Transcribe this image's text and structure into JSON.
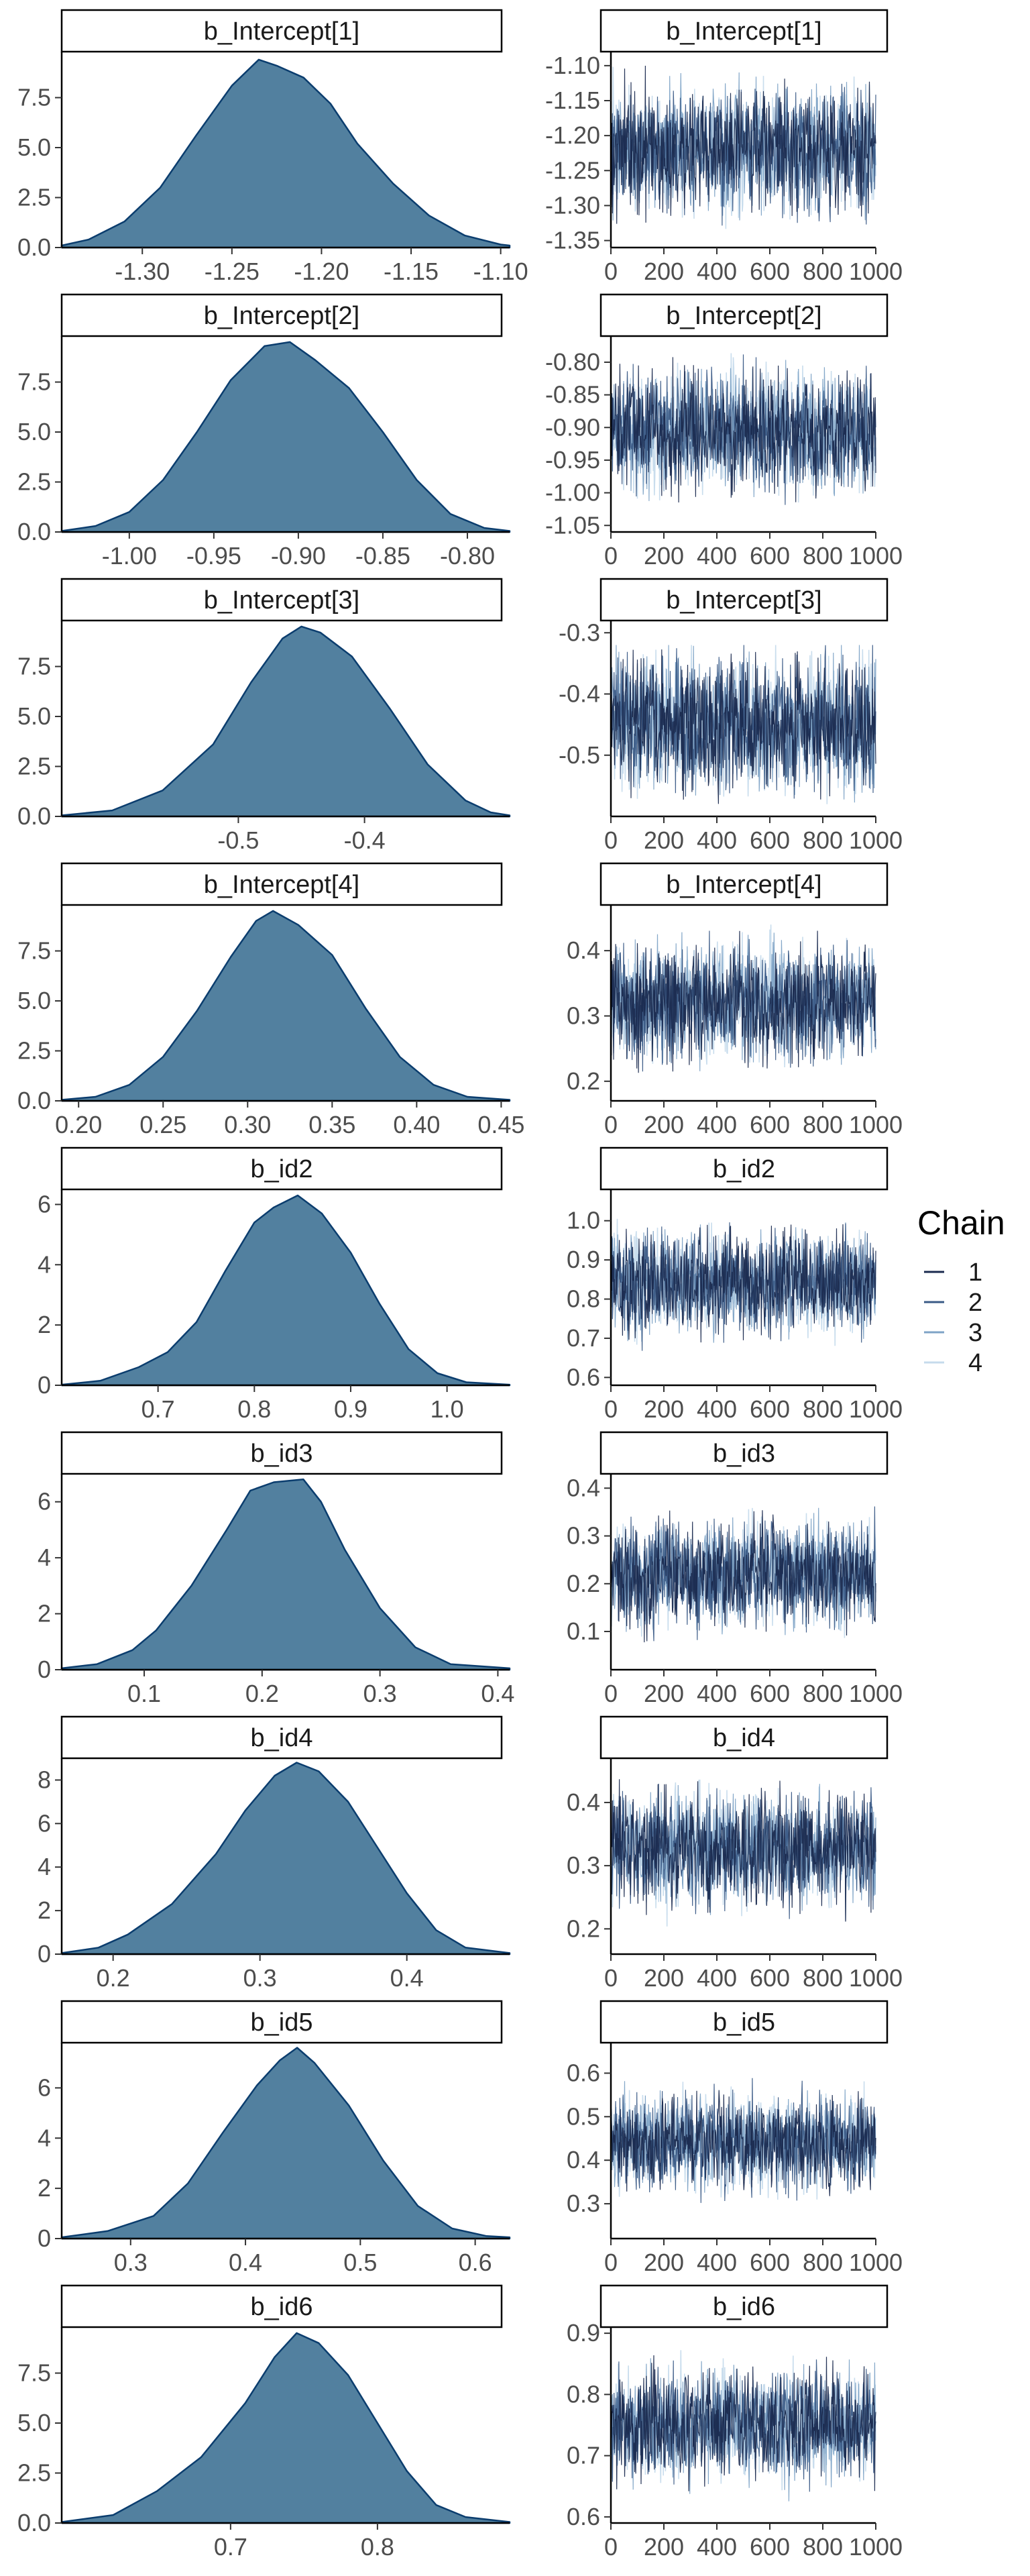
{
  "colors": {
    "density_fill": "#52809f",
    "density_line": "#0b3d6e",
    "chain_1": "#1a2a4f",
    "chain_2": "#3a5a86",
    "chain_3": "#7ea3c6",
    "chain_4": "#c6dbec"
  },
  "legend": {
    "title": "Chain",
    "entries": [
      "1",
      "2",
      "3",
      "4"
    ]
  },
  "chart_data": [
    {
      "type": "area",
      "role": "density",
      "title": "b_Intercept[1]",
      "xlim": [
        -1.345,
        -1.095
      ],
      "ylim": [
        0,
        9.8
      ],
      "x_ticks": [
        -1.3,
        -1.25,
        -1.2,
        -1.15,
        -1.1
      ],
      "x_tick_labels": [
        "-1.30",
        "-1.25",
        "-1.20",
        "-1.15",
        "-1.10"
      ],
      "y_ticks": [
        0,
        2.5,
        5,
        7.5
      ],
      "y_tick_labels": [
        "0.0",
        "2.5",
        "5.0",
        "7.5"
      ],
      "x": [
        -1.345,
        -1.33,
        -1.31,
        -1.29,
        -1.27,
        -1.25,
        -1.235,
        -1.225,
        -1.21,
        -1.195,
        -1.18,
        -1.16,
        -1.14,
        -1.12,
        -1.1,
        -1.095
      ],
      "y": [
        0.1,
        0.4,
        1.3,
        3.0,
        5.6,
        8.1,
        9.4,
        9.1,
        8.5,
        7.2,
        5.2,
        3.2,
        1.6,
        0.6,
        0.15,
        0.1
      ]
    },
    {
      "type": "line",
      "role": "trace",
      "title": "b_Intercept[1]",
      "xlim": [
        0,
        1000
      ],
      "ylim": [
        -1.36,
        -1.08
      ],
      "x_ticks": [
        0,
        200,
        400,
        600,
        800,
        1000
      ],
      "x_tick_labels": [
        "0",
        "200",
        "400",
        "600",
        "800",
        "1000"
      ],
      "y_ticks": [
        -1.35,
        -1.3,
        -1.25,
        -1.2,
        -1.15,
        -1.1
      ],
      "y_tick_labels": [
        "-1.35",
        "-1.30",
        "-1.25",
        "-1.20",
        "-1.15",
        "-1.10"
      ],
      "center": -1.22,
      "spread": 0.045,
      "min": -1.35,
      "max": -1.1,
      "iterations": 1000,
      "series": [
        {
          "name": "1"
        },
        {
          "name": "2"
        },
        {
          "name": "3"
        },
        {
          "name": "4"
        }
      ]
    },
    {
      "type": "area",
      "role": "density",
      "title": "b_Intercept[2]",
      "xlim": [
        -1.04,
        -0.775
      ],
      "ylim": [
        0,
        9.8
      ],
      "x_ticks": [
        -1.0,
        -0.95,
        -0.9,
        -0.85,
        -0.8
      ],
      "x_tick_labels": [
        "-1.00",
        "-0.95",
        "-0.90",
        "-0.85",
        "-0.80"
      ],
      "y_ticks": [
        0,
        2.5,
        5,
        7.5
      ],
      "y_tick_labels": [
        "0.0",
        "2.5",
        "5.0",
        "7.5"
      ],
      "x": [
        -1.04,
        -1.02,
        -1.0,
        -0.98,
        -0.96,
        -0.94,
        -0.92,
        -0.905,
        -0.89,
        -0.87,
        -0.85,
        -0.83,
        -0.81,
        -0.79,
        -0.775
      ],
      "y": [
        0.05,
        0.3,
        1.0,
        2.6,
        5.0,
        7.6,
        9.3,
        9.5,
        8.6,
        7.2,
        5.0,
        2.6,
        0.9,
        0.2,
        0.05
      ]
    },
    {
      "type": "line",
      "role": "trace",
      "title": "b_Intercept[2]",
      "xlim": [
        0,
        1000
      ],
      "ylim": [
        -1.06,
        -0.76
      ],
      "x_ticks": [
        0,
        200,
        400,
        600,
        800,
        1000
      ],
      "x_tick_labels": [
        "0",
        "200",
        "400",
        "600",
        "800",
        "1000"
      ],
      "y_ticks": [
        -1.05,
        -1.0,
        -0.95,
        -0.9,
        -0.85,
        -0.8
      ],
      "y_tick_labels": [
        "-1.05",
        "-1.00",
        "-0.95",
        "-0.90",
        "-0.85",
        "-0.80"
      ],
      "center": -0.905,
      "spread": 0.045,
      "min": -1.04,
      "max": -0.77,
      "iterations": 1000,
      "series": [
        {
          "name": "1"
        },
        {
          "name": "2"
        },
        {
          "name": "3"
        },
        {
          "name": "4"
        }
      ]
    },
    {
      "type": "area",
      "role": "density",
      "title": "b_Intercept[3]",
      "xlim": [
        -0.64,
        -0.285
      ],
      "ylim": [
        0,
        9.8
      ],
      "x_ticks": [
        -0.5,
        -0.4
      ],
      "x_tick_labels": [
        "-0.5",
        "-0.4"
      ],
      "y_ticks": [
        0,
        2.5,
        5,
        7.5
      ],
      "y_tick_labels": [
        "0.0",
        "2.5",
        "5.0",
        "7.5"
      ],
      "x": [
        -0.64,
        -0.6,
        -0.56,
        -0.52,
        -0.49,
        -0.465,
        -0.45,
        -0.435,
        -0.41,
        -0.38,
        -0.35,
        -0.32,
        -0.3,
        -0.285
      ],
      "y": [
        0.05,
        0.3,
        1.3,
        3.6,
        6.7,
        8.9,
        9.5,
        9.2,
        8.0,
        5.4,
        2.6,
        0.8,
        0.2,
        0.05
      ]
    },
    {
      "type": "line",
      "role": "trace",
      "title": "b_Intercept[3]",
      "xlim": [
        0,
        1000
      ],
      "ylim": [
        -0.6,
        -0.28
      ],
      "x_ticks": [
        0,
        200,
        400,
        600,
        800,
        1000
      ],
      "x_tick_labels": [
        "0",
        "200",
        "400",
        "600",
        "800",
        "1000"
      ],
      "y_ticks": [
        -0.5,
        -0.4,
        -0.3
      ],
      "y_tick_labels": [
        "-0.5",
        "-0.4",
        "-0.3"
      ],
      "center": -0.45,
      "spread": 0.055,
      "min": -0.58,
      "max": -0.32,
      "iterations": 1000,
      "series": [
        {
          "name": "1"
        },
        {
          "name": "2"
        },
        {
          "name": "3"
        },
        {
          "name": "4"
        }
      ]
    },
    {
      "type": "area",
      "role": "density",
      "title": "b_Intercept[4]",
      "xlim": [
        0.19,
        0.455
      ],
      "ylim": [
        0,
        9.8
      ],
      "x_ticks": [
        0.2,
        0.25,
        0.3,
        0.35,
        0.4,
        0.45
      ],
      "x_tick_labels": [
        "0.20",
        "0.25",
        "0.30",
        "0.35",
        "0.40",
        "0.45"
      ],
      "y_ticks": [
        0,
        2.5,
        5,
        7.5
      ],
      "y_tick_labels": [
        "0.0",
        "2.5",
        "5.0",
        "7.5"
      ],
      "x": [
        0.19,
        0.21,
        0.23,
        0.25,
        0.27,
        0.29,
        0.305,
        0.315,
        0.33,
        0.35,
        0.37,
        0.39,
        0.41,
        0.43,
        0.455
      ],
      "y": [
        0.05,
        0.2,
        0.8,
        2.2,
        4.5,
        7.2,
        9.0,
        9.5,
        8.8,
        7.3,
        4.6,
        2.2,
        0.8,
        0.2,
        0.05
      ]
    },
    {
      "type": "line",
      "role": "trace",
      "title": "b_Intercept[4]",
      "xlim": [
        0,
        1000
      ],
      "ylim": [
        0.17,
        0.47
      ],
      "x_ticks": [
        0,
        200,
        400,
        600,
        800,
        1000
      ],
      "x_tick_labels": [
        "0",
        "200",
        "400",
        "600",
        "800",
        "1000"
      ],
      "y_ticks": [
        0.2,
        0.3,
        0.4
      ],
      "y_tick_labels": [
        "0.2",
        "0.3",
        "0.4"
      ],
      "center": 0.32,
      "spread": 0.045,
      "min": 0.18,
      "max": 0.46,
      "iterations": 1000,
      "series": [
        {
          "name": "1"
        },
        {
          "name": "2"
        },
        {
          "name": "3"
        },
        {
          "name": "4"
        }
      ]
    },
    {
      "type": "area",
      "role": "density",
      "title": "b_id2",
      "xlim": [
        0.6,
        1.065
      ],
      "ylim": [
        0,
        6.5
      ],
      "x_ticks": [
        0.7,
        0.8,
        0.9,
        1.0
      ],
      "x_tick_labels": [
        "0.7",
        "0.8",
        "0.9",
        "1.0"
      ],
      "y_ticks": [
        0,
        2,
        4,
        6
      ],
      "y_tick_labels": [
        "0",
        "2",
        "4",
        "6"
      ],
      "x": [
        0.6,
        0.64,
        0.68,
        0.71,
        0.74,
        0.77,
        0.8,
        0.82,
        0.845,
        0.87,
        0.9,
        0.93,
        0.96,
        0.99,
        1.02,
        1.065
      ],
      "y": [
        0.02,
        0.15,
        0.6,
        1.1,
        2.1,
        3.8,
        5.4,
        5.9,
        6.3,
        5.7,
        4.4,
        2.7,
        1.2,
        0.4,
        0.1,
        0.02
      ]
    },
    {
      "type": "line",
      "role": "trace",
      "title": "b_id2",
      "xlim": [
        0,
        1000
      ],
      "ylim": [
        0.58,
        1.08
      ],
      "x_ticks": [
        0,
        200,
        400,
        600,
        800,
        1000
      ],
      "x_tick_labels": [
        "0",
        "200",
        "400",
        "600",
        "800",
        "1000"
      ],
      "y_ticks": [
        0.6,
        0.7,
        0.8,
        0.9,
        1.0
      ],
      "y_tick_labels": [
        "0.6",
        "0.7",
        "0.8",
        "0.9",
        "1.0"
      ],
      "center": 0.84,
      "spread": 0.065,
      "min": 0.6,
      "max": 1.06,
      "iterations": 1000,
      "series": [
        {
          "name": "1"
        },
        {
          "name": "2"
        },
        {
          "name": "3"
        },
        {
          "name": "4"
        }
      ]
    },
    {
      "type": "area",
      "role": "density",
      "title": "b_id3",
      "xlim": [
        0.03,
        0.41
      ],
      "ylim": [
        0,
        7.0
      ],
      "x_ticks": [
        0.1,
        0.2,
        0.3,
        0.4
      ],
      "x_tick_labels": [
        "0.1",
        "0.2",
        "0.3",
        "0.4"
      ],
      "y_ticks": [
        0,
        2,
        4,
        6
      ],
      "y_tick_labels": [
        "0",
        "2",
        "4",
        "6"
      ],
      "x": [
        0.03,
        0.06,
        0.09,
        0.11,
        0.14,
        0.17,
        0.19,
        0.21,
        0.235,
        0.25,
        0.27,
        0.3,
        0.33,
        0.36,
        0.41
      ],
      "y": [
        0.05,
        0.2,
        0.7,
        1.4,
        3.0,
        5.0,
        6.4,
        6.7,
        6.8,
        6.0,
        4.3,
        2.2,
        0.8,
        0.2,
        0.05
      ]
    },
    {
      "type": "line",
      "role": "trace",
      "title": "b_id3",
      "xlim": [
        0,
        1000
      ],
      "ylim": [
        0.02,
        0.43
      ],
      "x_ticks": [
        0,
        200,
        400,
        600,
        800,
        1000
      ],
      "x_tick_labels": [
        "0",
        "200",
        "400",
        "600",
        "800",
        "1000"
      ],
      "y_ticks": [
        0.1,
        0.2,
        0.3,
        0.4
      ],
      "y_tick_labels": [
        "0.1",
        "0.2",
        "0.3",
        "0.4"
      ],
      "center": 0.22,
      "spread": 0.055,
      "min": 0.04,
      "max": 0.41,
      "iterations": 1000,
      "series": [
        {
          "name": "1"
        },
        {
          "name": "2"
        },
        {
          "name": "3"
        },
        {
          "name": "4"
        }
      ]
    },
    {
      "type": "area",
      "role": "density",
      "title": "b_id4",
      "xlim": [
        0.165,
        0.47
      ],
      "ylim": [
        0,
        9.0
      ],
      "x_ticks": [
        0.2,
        0.3,
        0.4
      ],
      "x_tick_labels": [
        "0.2",
        "0.3",
        "0.4"
      ],
      "y_ticks": [
        0,
        2,
        4,
        6,
        8
      ],
      "y_tick_labels": [
        "0",
        "2",
        "4",
        "6",
        "8"
      ],
      "x": [
        0.165,
        0.19,
        0.21,
        0.24,
        0.27,
        0.29,
        0.31,
        0.325,
        0.34,
        0.36,
        0.38,
        0.4,
        0.42,
        0.44,
        0.47
      ],
      "y": [
        0.05,
        0.3,
        0.9,
        2.3,
        4.6,
        6.6,
        8.2,
        8.8,
        8.4,
        7.0,
        4.9,
        2.8,
        1.1,
        0.3,
        0.05
      ]
    },
    {
      "type": "line",
      "role": "trace",
      "title": "b_id4",
      "xlim": [
        0,
        1000
      ],
      "ylim": [
        0.16,
        0.47
      ],
      "x_ticks": [
        0,
        200,
        400,
        600,
        800,
        1000
      ],
      "x_tick_labels": [
        "0",
        "200",
        "400",
        "600",
        "800",
        "1000"
      ],
      "y_ticks": [
        0.2,
        0.3,
        0.4
      ],
      "y_tick_labels": [
        "0.2",
        "0.3",
        "0.4"
      ],
      "center": 0.325,
      "spread": 0.045,
      "min": 0.18,
      "max": 0.46,
      "iterations": 1000,
      "series": [
        {
          "name": "1"
        },
        {
          "name": "2"
        },
        {
          "name": "3"
        },
        {
          "name": "4"
        }
      ]
    },
    {
      "type": "area",
      "role": "density",
      "title": "b_id5",
      "xlim": [
        0.24,
        0.63
      ],
      "ylim": [
        0,
        7.8
      ],
      "x_ticks": [
        0.3,
        0.4,
        0.5,
        0.6
      ],
      "x_tick_labels": [
        "0.3",
        "0.4",
        "0.5",
        "0.6"
      ],
      "y_ticks": [
        0,
        2,
        4,
        6
      ],
      "y_tick_labels": [
        "0",
        "2",
        "4",
        "6"
      ],
      "x": [
        0.24,
        0.28,
        0.32,
        0.35,
        0.38,
        0.41,
        0.43,
        0.445,
        0.46,
        0.49,
        0.52,
        0.55,
        0.58,
        0.61,
        0.63
      ],
      "y": [
        0.05,
        0.3,
        0.9,
        2.2,
        4.2,
        6.1,
        7.1,
        7.6,
        7.0,
        5.3,
        3.1,
        1.3,
        0.4,
        0.1,
        0.05
      ]
    },
    {
      "type": "line",
      "role": "trace",
      "title": "b_id5",
      "xlim": [
        0,
        1000
      ],
      "ylim": [
        0.22,
        0.67
      ],
      "x_ticks": [
        0,
        200,
        400,
        600,
        800,
        1000
      ],
      "x_tick_labels": [
        "0",
        "200",
        "400",
        "600",
        "800",
        "1000"
      ],
      "y_ticks": [
        0.3,
        0.4,
        0.5,
        0.6
      ],
      "y_tick_labels": [
        "0.3",
        "0.4",
        "0.5",
        "0.6"
      ],
      "center": 0.44,
      "spread": 0.055,
      "min": 0.26,
      "max": 0.63,
      "iterations": 1000,
      "series": [
        {
          "name": "1"
        },
        {
          "name": "2"
        },
        {
          "name": "3"
        },
        {
          "name": "4"
        }
      ]
    },
    {
      "type": "area",
      "role": "density",
      "title": "b_id6",
      "xlim": [
        0.585,
        0.89
      ],
      "ylim": [
        0,
        9.8
      ],
      "x_ticks": [
        0.7,
        0.8
      ],
      "x_tick_labels": [
        "0.7",
        "0.8"
      ],
      "y_ticks": [
        0,
        2.5,
        5,
        7.5
      ],
      "y_tick_labels": [
        "0.0",
        "2.5",
        "5.0",
        "7.5"
      ],
      "x": [
        0.585,
        0.62,
        0.65,
        0.68,
        0.71,
        0.73,
        0.745,
        0.76,
        0.78,
        0.8,
        0.82,
        0.84,
        0.86,
        0.89
      ],
      "y": [
        0.05,
        0.4,
        1.6,
        3.3,
        6.0,
        8.3,
        9.5,
        9.0,
        7.4,
        5.0,
        2.6,
        0.9,
        0.3,
        0.05
      ]
    },
    {
      "type": "line",
      "role": "trace",
      "title": "b_id6",
      "xlim": [
        0,
        1000
      ],
      "ylim": [
        0.59,
        0.91
      ],
      "x_ticks": [
        0,
        200,
        400,
        600,
        800,
        1000
      ],
      "x_tick_labels": [
        "0",
        "200",
        "400",
        "600",
        "800",
        "1000"
      ],
      "y_ticks": [
        0.6,
        0.7,
        0.8,
        0.9
      ],
      "y_tick_labels": [
        "0.6",
        "0.7",
        "0.8",
        "0.9"
      ],
      "center": 0.75,
      "spread": 0.045,
      "min": 0.61,
      "max": 0.89,
      "iterations": 1000,
      "series": [
        {
          "name": "1"
        },
        {
          "name": "2"
        },
        {
          "name": "3"
        },
        {
          "name": "4"
        }
      ]
    }
  ]
}
